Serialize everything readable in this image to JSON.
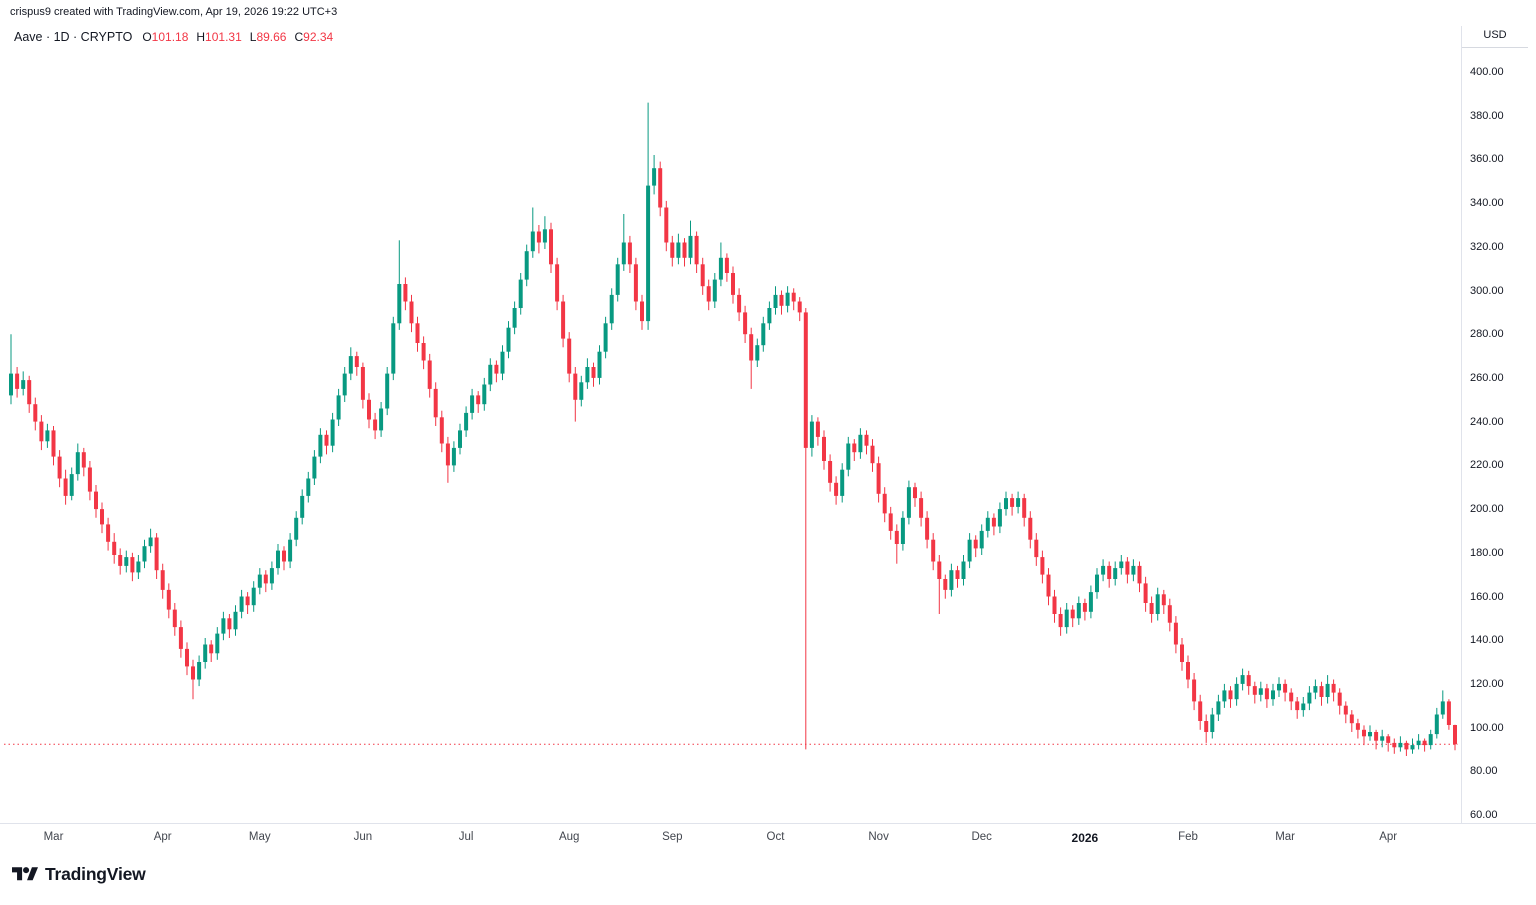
{
  "attribution": "crispus9 created with TradingView.com, Apr 19, 2026 19:22 UTC+3",
  "legend": {
    "title": "Aave · 1D · CRYPTO",
    "ohlc": [
      {
        "k": "O",
        "v": "101.18"
      },
      {
        "k": "H",
        "v": "101.31"
      },
      {
        "k": "L",
        "v": "89.66"
      },
      {
        "k": "C",
        "v": "92.34"
      }
    ]
  },
  "logo": {
    "text": "TradingView"
  },
  "colors": {
    "up": "#089981",
    "down": "#F23645",
    "last_price_line": "#F23645",
    "text": "#131722",
    "axis_line": "#e0e3eb"
  },
  "chart_data": {
    "type": "candlestick",
    "title": "Aave",
    "interval": "1D",
    "exchange": "CRYPTO",
    "currency": "USD",
    "ylim": [
      60,
      400
    ],
    "grid": false,
    "last_price": 92.34,
    "last_price_line_style": "dotted",
    "y_ticks": [
      "400.00",
      "380.00",
      "360.00",
      "340.00",
      "320.00",
      "300.00",
      "280.00",
      "260.00",
      "240.00",
      "220.00",
      "200.00",
      "180.00",
      "160.00",
      "140.00",
      "120.00",
      "100.00",
      "80.00",
      "60.00"
    ],
    "x_ticks": [
      {
        "label": "Mar",
        "i": 7
      },
      {
        "label": "Apr",
        "i": 25
      },
      {
        "label": "May",
        "i": 41
      },
      {
        "label": "Jun",
        "i": 58
      },
      {
        "label": "Jul",
        "i": 75
      },
      {
        "label": "Aug",
        "i": 92
      },
      {
        "label": "Sep",
        "i": 109
      },
      {
        "label": "Oct",
        "i": 126
      },
      {
        "label": "Nov",
        "i": 143
      },
      {
        "label": "Dec",
        "i": 160
      },
      {
        "label": "2026",
        "i": 177,
        "bold": true
      },
      {
        "label": "Feb",
        "i": 194
      },
      {
        "label": "Mar",
        "i": 210
      },
      {
        "label": "Apr",
        "i": 227
      }
    ],
    "candles": [
      [
        252,
        280,
        248,
        262
      ],
      [
        262,
        265,
        251,
        255
      ],
      [
        255,
        263,
        252,
        259
      ],
      [
        259,
        261,
        244,
        248
      ],
      [
        248,
        251,
        236,
        240
      ],
      [
        240,
        243,
        227,
        231
      ],
      [
        231,
        239,
        228,
        236
      ],
      [
        236,
        238,
        220,
        224
      ],
      [
        224,
        227,
        210,
        214
      ],
      [
        214,
        218,
        202,
        206
      ],
      [
        206,
        219,
        204,
        216
      ],
      [
        216,
        230,
        213,
        226
      ],
      [
        226,
        228,
        215,
        219
      ],
      [
        219,
        222,
        204,
        208
      ],
      [
        208,
        211,
        196,
        200
      ],
      [
        200,
        203,
        189,
        193
      ],
      [
        193,
        196,
        181,
        185
      ],
      [
        185,
        189,
        175,
        179
      ],
      [
        179,
        182,
        170,
        174
      ],
      [
        174,
        181,
        171,
        178
      ],
      [
        178,
        180,
        167,
        171
      ],
      [
        171,
        179,
        168,
        176
      ],
      [
        176,
        186,
        173,
        183
      ],
      [
        183,
        191,
        180,
        187
      ],
      [
        187,
        189,
        168,
        172
      ],
      [
        172,
        175,
        159,
        163
      ],
      [
        163,
        166,
        150,
        154
      ],
      [
        154,
        157,
        142,
        146
      ],
      [
        146,
        149,
        132,
        136
      ],
      [
        136,
        139,
        124,
        128
      ],
      [
        128,
        131,
        113,
        122
      ],
      [
        122,
        133,
        119,
        130
      ],
      [
        130,
        141,
        127,
        138
      ],
      [
        138,
        140,
        130,
        134
      ],
      [
        134,
        146,
        131,
        143
      ],
      [
        143,
        153,
        140,
        150
      ],
      [
        150,
        152,
        141,
        145
      ],
      [
        145,
        156,
        142,
        153
      ],
      [
        153,
        163,
        150,
        160
      ],
      [
        160,
        162,
        152,
        156
      ],
      [
        156,
        167,
        153,
        164
      ],
      [
        164,
        173,
        161,
        170
      ],
      [
        170,
        172,
        162,
        166
      ],
      [
        166,
        176,
        163,
        173
      ],
      [
        173,
        184,
        170,
        181
      ],
      [
        181,
        183,
        172,
        176
      ],
      [
        176,
        189,
        173,
        186
      ],
      [
        186,
        199,
        183,
        196
      ],
      [
        196,
        209,
        193,
        206
      ],
      [
        206,
        217,
        203,
        214
      ],
      [
        214,
        227,
        211,
        224
      ],
      [
        224,
        237,
        221,
        234
      ],
      [
        234,
        236,
        225,
        229
      ],
      [
        229,
        244,
        226,
        241
      ],
      [
        241,
        255,
        238,
        252
      ],
      [
        252,
        265,
        249,
        262
      ],
      [
        262,
        274,
        259,
        270
      ],
      [
        270,
        272,
        261,
        265
      ],
      [
        265,
        267,
        246,
        250
      ],
      [
        250,
        253,
        237,
        241
      ],
      [
        241,
        244,
        232,
        236
      ],
      [
        236,
        249,
        233,
        246
      ],
      [
        246,
        265,
        243,
        262
      ],
      [
        262,
        288,
        259,
        285
      ],
      [
        285,
        323,
        282,
        303
      ],
      [
        303,
        306,
        291,
        295
      ],
      [
        295,
        298,
        281,
        285
      ],
      [
        285,
        288,
        272,
        276
      ],
      [
        276,
        279,
        264,
        268
      ],
      [
        268,
        271,
        251,
        255
      ],
      [
        255,
        258,
        238,
        242
      ],
      [
        242,
        245,
        226,
        230
      ],
      [
        230,
        233,
        212,
        220
      ],
      [
        220,
        231,
        217,
        228
      ],
      [
        228,
        239,
        225,
        236
      ],
      [
        236,
        247,
        233,
        244
      ],
      [
        244,
        255,
        241,
        252
      ],
      [
        252,
        254,
        244,
        248
      ],
      [
        248,
        260,
        245,
        257
      ],
      [
        257,
        269,
        254,
        266
      ],
      [
        266,
        268,
        258,
        262
      ],
      [
        262,
        275,
        259,
        272
      ],
      [
        272,
        286,
        269,
        283
      ],
      [
        283,
        295,
        280,
        292
      ],
      [
        292,
        308,
        289,
        305
      ],
      [
        305,
        321,
        302,
        318
      ],
      [
        318,
        338,
        315,
        327
      ],
      [
        327,
        330,
        317,
        322
      ],
      [
        322,
        334,
        319,
        328
      ],
      [
        328,
        331,
        308,
        312
      ],
      [
        312,
        315,
        291,
        295
      ],
      [
        295,
        298,
        274,
        278
      ],
      [
        278,
        281,
        258,
        262
      ],
      [
        262,
        265,
        240,
        250
      ],
      [
        250,
        261,
        247,
        258
      ],
      [
        258,
        269,
        255,
        265
      ],
      [
        265,
        267,
        256,
        260
      ],
      [
        260,
        275,
        257,
        272
      ],
      [
        272,
        288,
        269,
        285
      ],
      [
        285,
        301,
        282,
        298
      ],
      [
        298,
        315,
        295,
        312
      ],
      [
        312,
        335,
        309,
        322
      ],
      [
        322,
        325,
        308,
        312
      ],
      [
        312,
        315,
        291,
        295
      ],
      [
        295,
        298,
        282,
        286
      ],
      [
        286,
        386,
        282,
        348
      ],
      [
        348,
        362,
        344,
        356
      ],
      [
        356,
        359,
        334,
        338
      ],
      [
        338,
        341,
        318,
        322
      ],
      [
        322,
        325,
        311,
        315
      ],
      [
        315,
        326,
        312,
        322
      ],
      [
        322,
        324,
        311,
        315
      ],
      [
        315,
        332,
        312,
        325
      ],
      [
        325,
        327,
        308,
        312
      ],
      [
        312,
        315,
        298,
        302
      ],
      [
        302,
        305,
        291,
        295
      ],
      [
        295,
        308,
        292,
        305
      ],
      [
        305,
        322,
        302,
        315
      ],
      [
        315,
        317,
        304,
        308
      ],
      [
        308,
        311,
        294,
        298
      ],
      [
        298,
        301,
        286,
        290
      ],
      [
        290,
        293,
        276,
        280
      ],
      [
        280,
        283,
        255,
        268
      ],
      [
        268,
        278,
        265,
        275
      ],
      [
        275,
        288,
        272,
        285
      ],
      [
        285,
        295,
        282,
        292
      ],
      [
        292,
        302,
        289,
        298
      ],
      [
        298,
        300,
        289,
        293
      ],
      [
        293,
        302,
        290,
        299
      ],
      [
        299,
        301,
        291,
        295
      ],
      [
        295,
        297,
        286,
        290
      ],
      [
        290,
        292,
        90,
        228
      ],
      [
        228,
        243,
        224,
        240
      ],
      [
        240,
        242,
        229,
        233
      ],
      [
        233,
        236,
        218,
        222
      ],
      [
        222,
        225,
        208,
        212
      ],
      [
        212,
        215,
        202,
        206
      ],
      [
        206,
        221,
        203,
        218
      ],
      [
        218,
        233,
        215,
        230
      ],
      [
        230,
        232,
        222,
        226
      ],
      [
        226,
        237,
        223,
        234
      ],
      [
        234,
        236,
        225,
        229
      ],
      [
        229,
        232,
        217,
        221
      ],
      [
        221,
        224,
        203,
        207
      ],
      [
        207,
        210,
        194,
        198
      ],
      [
        198,
        201,
        186,
        190
      ],
      [
        190,
        193,
        175,
        184
      ],
      [
        184,
        199,
        181,
        196
      ],
      [
        196,
        213,
        193,
        210
      ],
      [
        210,
        212,
        201,
        205
      ],
      [
        205,
        208,
        192,
        196
      ],
      [
        196,
        199,
        182,
        186
      ],
      [
        186,
        189,
        172,
        176
      ],
      [
        176,
        179,
        152,
        168
      ],
      [
        168,
        170,
        159,
        163
      ],
      [
        163,
        175,
        160,
        172
      ],
      [
        172,
        174,
        164,
        168
      ],
      [
        168,
        179,
        165,
        176
      ],
      [
        176,
        189,
        173,
        186
      ],
      [
        186,
        188,
        178,
        182
      ],
      [
        182,
        193,
        179,
        190
      ],
      [
        190,
        199,
        187,
        196
      ],
      [
        196,
        198,
        188,
        192
      ],
      [
        192,
        203,
        189,
        200
      ],
      [
        200,
        208,
        197,
        205
      ],
      [
        205,
        207,
        197,
        201
      ],
      [
        201,
        208,
        198,
        205
      ],
      [
        205,
        207,
        192,
        196
      ],
      [
        196,
        199,
        182,
        186
      ],
      [
        186,
        189,
        174,
        178
      ],
      [
        178,
        181,
        166,
        170
      ],
      [
        170,
        173,
        156,
        160
      ],
      [
        160,
        163,
        148,
        152
      ],
      [
        152,
        155,
        142,
        146
      ],
      [
        146,
        157,
        143,
        154
      ],
      [
        154,
        156,
        146,
        150
      ],
      [
        150,
        160,
        147,
        157
      ],
      [
        157,
        159,
        149,
        153
      ],
      [
        153,
        165,
        150,
        162
      ],
      [
        162,
        173,
        159,
        170
      ],
      [
        170,
        177,
        167,
        174
      ],
      [
        174,
        176,
        164,
        168
      ],
      [
        168,
        176,
        165,
        173
      ],
      [
        173,
        179,
        170,
        176
      ],
      [
        176,
        178,
        166,
        170
      ],
      [
        170,
        177,
        167,
        174
      ],
      [
        174,
        176,
        162,
        166
      ],
      [
        166,
        169,
        153,
        157
      ],
      [
        157,
        160,
        148,
        152
      ],
      [
        152,
        164,
        149,
        161
      ],
      [
        161,
        163,
        152,
        156
      ],
      [
        156,
        159,
        144,
        148
      ],
      [
        148,
        151,
        134,
        138
      ],
      [
        138,
        141,
        126,
        130
      ],
      [
        130,
        133,
        118,
        122
      ],
      [
        122,
        125,
        108,
        112
      ],
      [
        112,
        115,
        99,
        103
      ],
      [
        103,
        106,
        93,
        98
      ],
      [
        98,
        109,
        95,
        106
      ],
      [
        106,
        115,
        103,
        112
      ],
      [
        112,
        120,
        109,
        117
      ],
      [
        117,
        119,
        109,
        113
      ],
      [
        113,
        123,
        110,
        120
      ],
      [
        120,
        127,
        117,
        124
      ],
      [
        124,
        126,
        115,
        119
      ],
      [
        119,
        121,
        111,
        115
      ],
      [
        115,
        121,
        112,
        118
      ],
      [
        118,
        120,
        109,
        113
      ],
      [
        113,
        120,
        110,
        117
      ],
      [
        117,
        123,
        114,
        120
      ],
      [
        120,
        122,
        112,
        116
      ],
      [
        116,
        118,
        108,
        112
      ],
      [
        112,
        114,
        104,
        108
      ],
      [
        108,
        114,
        105,
        111
      ],
      [
        111,
        119,
        108,
        116
      ],
      [
        116,
        122,
        113,
        119
      ],
      [
        119,
        121,
        110,
        114
      ],
      [
        114,
        124,
        111,
        120
      ],
      [
        120,
        122,
        112,
        116
      ],
      [
        116,
        118,
        106,
        110
      ],
      [
        110,
        112,
        102,
        106
      ],
      [
        106,
        108,
        98,
        102
      ],
      [
        102,
        104,
        95,
        99
      ],
      [
        99,
        101,
        92,
        96
      ],
      [
        96,
        101,
        94,
        98
      ],
      [
        98,
        99,
        90,
        94
      ],
      [
        94,
        99,
        91,
        96
      ],
      [
        96,
        97,
        89,
        93
      ],
      [
        93,
        95,
        88,
        91
      ],
      [
        91,
        96,
        89,
        93
      ],
      [
        93,
        94,
        87,
        90
      ],
      [
        90,
        95,
        88,
        92
      ],
      [
        92,
        97,
        90,
        94
      ],
      [
        94,
        95,
        89,
        92
      ],
      [
        92,
        99,
        90,
        97
      ],
      [
        97,
        109,
        95,
        106
      ],
      [
        106,
        117,
        104,
        112
      ],
      [
        112,
        113,
        99,
        101.18
      ],
      [
        101.18,
        101.31,
        89.66,
        92.34
      ]
    ]
  }
}
